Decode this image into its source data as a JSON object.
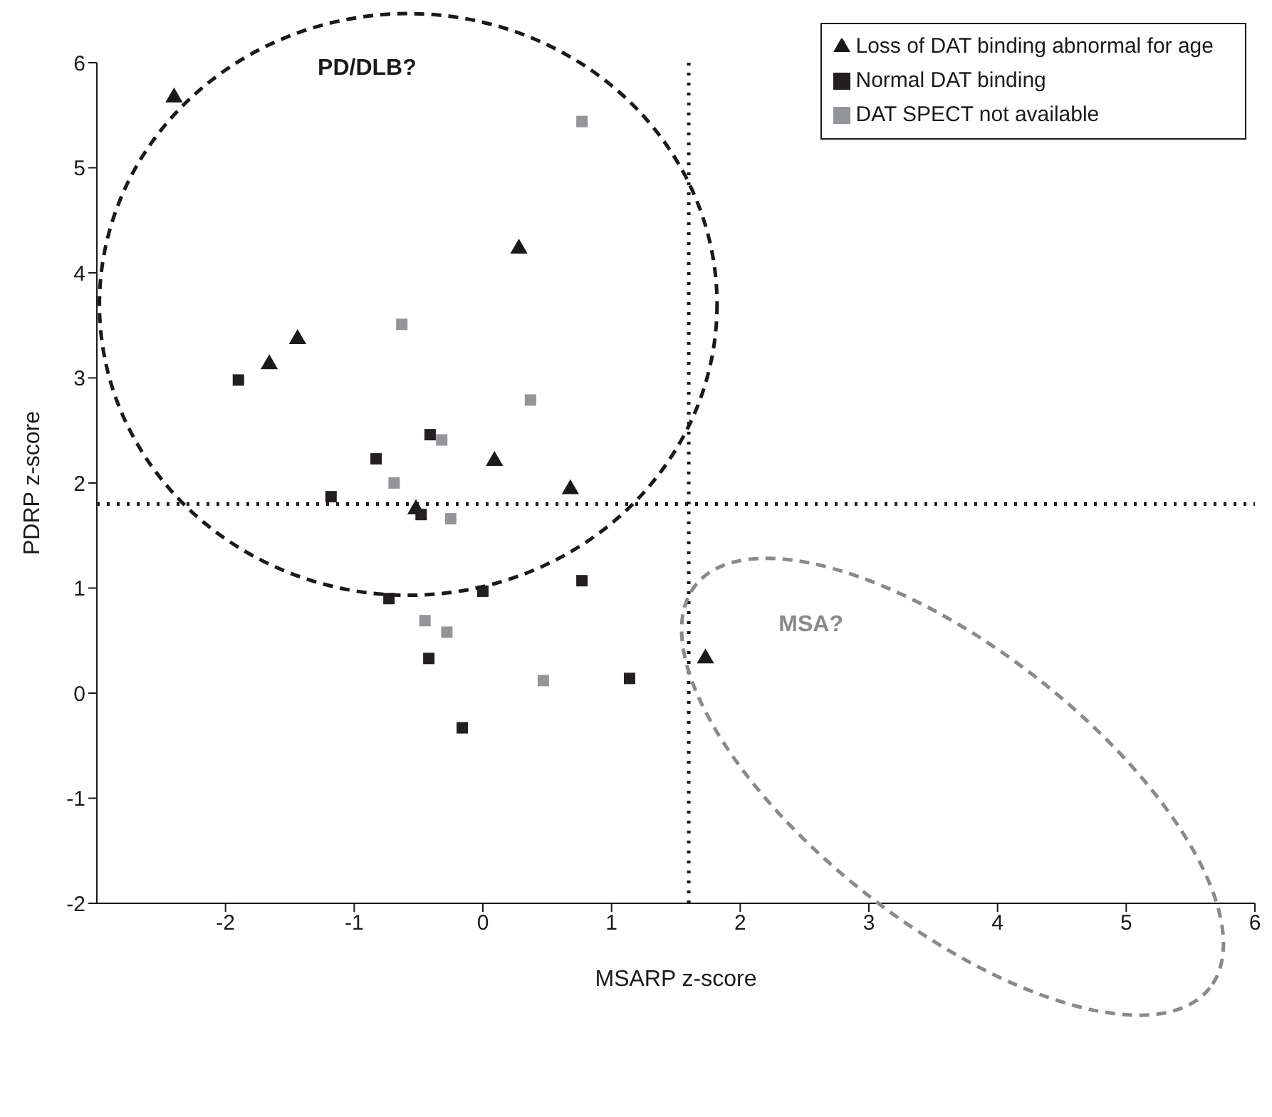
{
  "chart_data": {
    "type": "scatter",
    "xlabel": "MSARP z-score",
    "ylabel": "PDRP z-score",
    "xlim": [
      -3,
      6
    ],
    "xticks": [
      -2,
      -1,
      0,
      1,
      2,
      3,
      4,
      5,
      6
    ],
    "ylim": [
      -2,
      6
    ],
    "yticks": [
      -2,
      -1,
      0,
      1,
      2,
      3,
      4,
      5,
      6
    ],
    "legend": "top right",
    "series": [
      {
        "name": "Loss of DAT binding abnormal for age",
        "color": "#1a1a1a",
        "marker": "triangle",
        "x": [
          -2.4,
          0.28,
          -1.44,
          -1.66,
          0.09,
          0.68,
          -0.52,
          1.73
        ],
        "values": [
          5.67,
          4.23,
          3.37,
          3.13,
          2.21,
          1.94,
          1.75,
          0.33
        ]
      },
      {
        "name": "Normal DAT binding",
        "color": "#231f20",
        "marker": "square",
        "x": [
          -1.9,
          -0.41,
          -0.83,
          -1.18,
          -0.48,
          0,
          0.77,
          -0.73,
          -0.42,
          1.14,
          -0.16
        ],
        "values": [
          2.98,
          2.46,
          2.23,
          1.87,
          1.7,
          0.97,
          1.07,
          0.9,
          0.33,
          0.14,
          -0.33
        ]
      },
      {
        "name": "DAT SPECT not available",
        "color": "#939598",
        "marker": "square",
        "x": [
          0.77,
          -0.63,
          0.37,
          -0.32,
          -0.69,
          -0.25,
          -0.45,
          -0.28,
          0.47
        ],
        "values": [
          5.44,
          3.51,
          2.79,
          2.41,
          2,
          1.66,
          0.69,
          0.58,
          0.12
        ]
      }
    ],
    "ref_lines": [
      {
        "axis": "x",
        "value": 1.6,
        "color": "#1a1a1a",
        "line_style": "dotted"
      },
      {
        "axis": "y",
        "value": 1.8,
        "color": "#1a1a1a",
        "line_style": "dotted"
      }
    ],
    "annotations": [
      "PD/DLB?",
      "MSA?"
    ]
  }
}
